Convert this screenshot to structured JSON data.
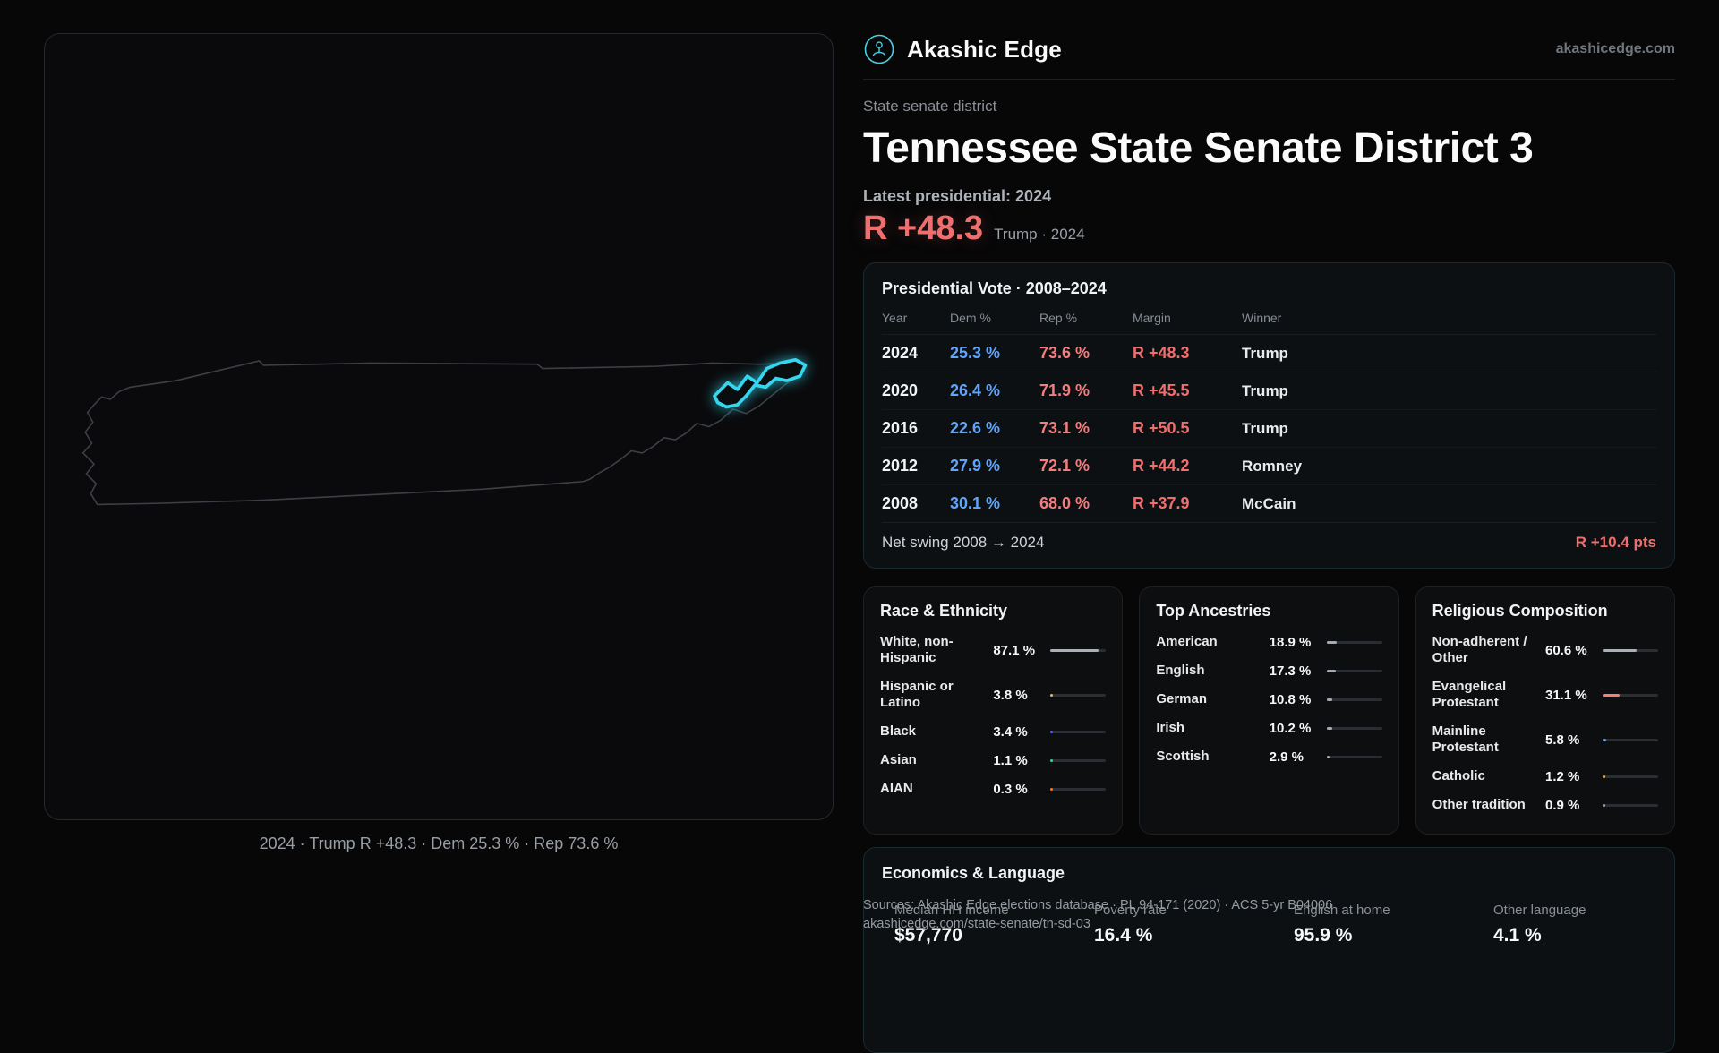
{
  "brand": {
    "name": "Akashic Edge",
    "domain": "akashicedge.com"
  },
  "colors": {
    "accent_red": "#ef6e6e",
    "dem_blue": "#60a5fa",
    "district_cyan": "#35d6ef"
  },
  "map": {
    "caption": "2024 · Trump R +48.3 · Dem 25.3 % · Rep 73.6 %"
  },
  "header": {
    "kicker": "State senate district",
    "title": "Tennessee State Senate District 3",
    "latest": "Latest presidential: 2024",
    "margin_value": "R +48.3",
    "margin_detail": "Trump · 2024"
  },
  "presidential": {
    "title": "Presidential Vote · 2008–2024",
    "columns": [
      "Year",
      "Dem %",
      "Rep %",
      "Margin",
      "Winner"
    ],
    "rows": [
      {
        "year": "2024",
        "dem": "25.3 %",
        "rep": "73.6 %",
        "margin": "R +48.3",
        "winner": "Trump"
      },
      {
        "year": "2020",
        "dem": "26.4 %",
        "rep": "71.9 %",
        "margin": "R +45.5",
        "winner": "Trump"
      },
      {
        "year": "2016",
        "dem": "22.6 %",
        "rep": "73.1 %",
        "margin": "R +50.5",
        "winner": "Trump"
      },
      {
        "year": "2012",
        "dem": "27.9 %",
        "rep": "72.1 %",
        "margin": "R +44.2",
        "winner": "Romney"
      },
      {
        "year": "2008",
        "dem": "30.1 %",
        "rep": "68.0 %",
        "margin": "R +37.9",
        "winner": "McCain"
      }
    ],
    "net_swing_label": "Net swing 2008 → 2024",
    "net_swing_value": "R +10.4 pts"
  },
  "race": {
    "title": "Race & Ethnicity",
    "rows": [
      {
        "label": "White, non-Hispanic",
        "value": "87.1 %",
        "pct": 87.1,
        "color": "#aab0b8"
      },
      {
        "label": "Hispanic or Latino",
        "value": "3.8 %",
        "pct": 3.8,
        "color": "#f0b33e"
      },
      {
        "label": "Black",
        "value": "3.4 %",
        "pct": 3.4,
        "color": "#6366f1"
      },
      {
        "label": "Asian",
        "value": "1.1 %",
        "pct": 1.1,
        "color": "#34d399"
      },
      {
        "label": "AIAN",
        "value": "0.3 %",
        "pct": 0.3,
        "color": "#f97316"
      }
    ]
  },
  "ancestries": {
    "title": "Top Ancestries",
    "rows": [
      {
        "label": "American",
        "value": "18.9 %",
        "pct": 18.9,
        "color": "#a6abb3"
      },
      {
        "label": "English",
        "value": "17.3 %",
        "pct": 17.3,
        "color": "#a6abb3"
      },
      {
        "label": "German",
        "value": "10.8 %",
        "pct": 10.8,
        "color": "#a6abb3"
      },
      {
        "label": "Irish",
        "value": "10.2 %",
        "pct": 10.2,
        "color": "#a6abb3"
      },
      {
        "label": "Scottish",
        "value": "2.9 %",
        "pct": 2.9,
        "color": "#a6abb3"
      }
    ]
  },
  "religion": {
    "title": "Religious Composition",
    "rows": [
      {
        "label": "Non-adherent / Other",
        "value": "60.6 %",
        "pct": 60.6,
        "color": "#aab0b8"
      },
      {
        "label": "Evangelical Protestant",
        "value": "31.1 %",
        "pct": 31.1,
        "color": "#f47d7d"
      },
      {
        "label": "Mainline Protestant",
        "value": "5.8 %",
        "pct": 5.8,
        "color": "#5b9bf5"
      },
      {
        "label": "Catholic",
        "value": "1.2 %",
        "pct": 1.2,
        "color": "#f0c04a"
      },
      {
        "label": "Other tradition",
        "value": "0.9 %",
        "pct": 0.9,
        "color": "#a6abb3"
      }
    ]
  },
  "economics": {
    "title": "Economics & Language",
    "stats": [
      {
        "label": "Median HH income",
        "value": "$57,770"
      },
      {
        "label": "Poverty rate",
        "value": "16.4 %"
      },
      {
        "label": "English at home",
        "value": "95.9 %"
      },
      {
        "label": "Other language",
        "value": "4.1 %"
      }
    ]
  },
  "sources": {
    "line1": "Sources: Akashic Edge elections database · PL 94-171 (2020) · ACS 5-yr B04006",
    "line2": "akashicedge.com/state-senate/tn-sd-03"
  }
}
